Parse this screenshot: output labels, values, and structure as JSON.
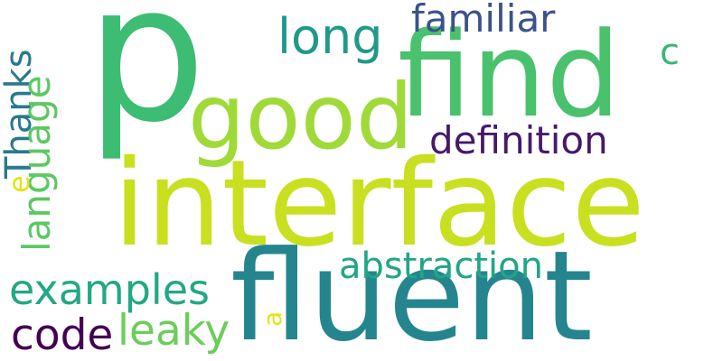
{
  "words": [
    {
      "id": "p",
      "text": "p",
      "color": "#3dbc74"
    },
    {
      "id": "find",
      "text": "find",
      "color": "#4ac16d"
    },
    {
      "id": "good",
      "text": "good",
      "color": "#a0da39"
    },
    {
      "id": "interface",
      "text": "interface",
      "color": "#c8e020"
    },
    {
      "id": "fluent",
      "text": "fluent",
      "color": "#25858e"
    },
    {
      "id": "long",
      "text": "long",
      "color": "#1f9a8a"
    },
    {
      "id": "familiar",
      "text": "familiar",
      "color": "#3b528b"
    },
    {
      "id": "definition",
      "text": "definition",
      "color": "#46196a"
    },
    {
      "id": "abstraction",
      "text": "abstraction",
      "color": "#21a685"
    },
    {
      "id": "examples",
      "text": "examples",
      "color": "#22a884"
    },
    {
      "id": "code",
      "text": "code",
      "color": "#440154"
    },
    {
      "id": "leaky",
      "text": "leaky",
      "color": "#6ccd5a"
    },
    {
      "id": "c",
      "text": "c",
      "color": "#35b779"
    },
    {
      "id": "thanks",
      "text": "Thanks",
      "color": "#2a788e"
    },
    {
      "id": "language",
      "text": "language",
      "color": "#5cc863"
    },
    {
      "id": "e",
      "text": "e",
      "color": "#e4e419"
    },
    {
      "id": "a",
      "text": "a",
      "color": "#e4e419"
    }
  ]
}
